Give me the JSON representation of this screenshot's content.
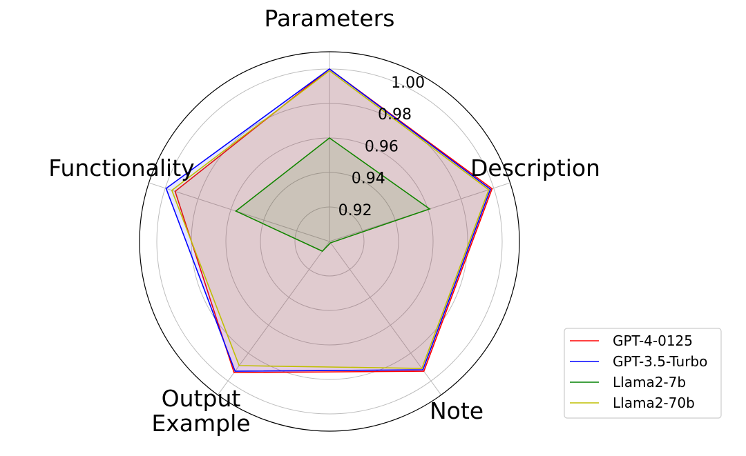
{
  "chart_data": {
    "type": "radar",
    "categories": [
      "Parameters",
      "Description",
      "Note",
      "Output\nExample",
      "Functionality"
    ],
    "rticks": [
      "0.92",
      "0.94",
      "0.96",
      "0.98",
      "1.00"
    ],
    "rtick_values": [
      0.92,
      0.94,
      0.96,
      0.98,
      1.0
    ],
    "rlim": [
      0.9,
      1.01
    ],
    "grid": true,
    "legend_position": "lower-right",
    "series": [
      {
        "name": "GPT-4-0125",
        "color": "#ff0000",
        "values": [
          1.0,
          0.999,
          0.993,
          0.994,
          0.994
        ],
        "fill": true
      },
      {
        "name": "GPT-3.5-Turbo",
        "color": "#0000ff",
        "values": [
          1.0,
          0.998,
          0.992,
          0.993,
          0.9995
        ],
        "fill": true
      },
      {
        "name": "Llama2-7b",
        "color": "#008000",
        "values": [
          0.96,
          0.961,
          0.901,
          0.907,
          0.957
        ],
        "fill": true
      },
      {
        "name": "Llama2-70b",
        "color": "#bfbf00",
        "values": [
          0.999,
          0.997,
          0.991,
          0.989,
          0.996
        ],
        "fill": true
      }
    ]
  }
}
